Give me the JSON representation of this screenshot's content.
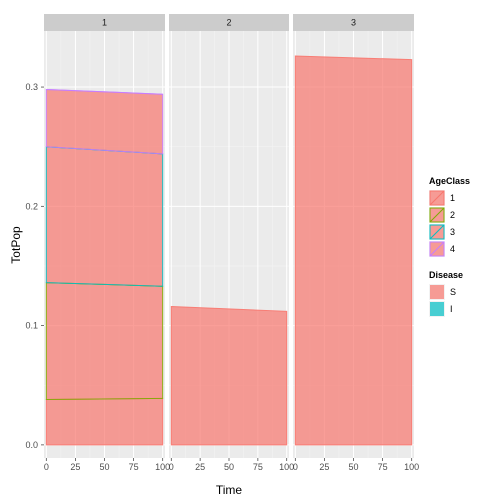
{
  "chart_data": {
    "type": "area",
    "xlabel": "Time",
    "ylabel": "TotPop",
    "xlim": [
      -2,
      102
    ],
    "ylim": [
      -0.011,
      0.347
    ],
    "x_ticks": [
      "0",
      "25",
      "50",
      "75",
      "100"
    ],
    "y_ticks": [
      "0.0",
      "0.1",
      "0.2",
      "0.3"
    ],
    "panels": [
      {
        "label": "1",
        "stacked_bands": [
          {
            "age_class": "1",
            "disease": "S",
            "color": "#F8766D",
            "base": [
              0,
              0
            ],
            "top": [
              0.038,
              0.039
            ]
          },
          {
            "age_class": "1",
            "disease": "I",
            "color": "#00BFC4",
            "base": [
              0.038,
              0.039
            ],
            "top": [
              0.038,
              0.039
            ]
          },
          {
            "age_class": "2",
            "disease": "S",
            "color": "#F8766D",
            "base": [
              0.038,
              0.039
            ],
            "top": [
              0.136,
              0.133
            ]
          },
          {
            "age_class": "2",
            "disease": "I",
            "color": "#00BFC4",
            "base": [
              0.136,
              0.133
            ],
            "top": [
              0.136,
              0.133
            ]
          },
          {
            "age_class": "3",
            "disease": "S",
            "color": "#F8766D",
            "base": [
              0.136,
              0.133
            ],
            "top": [
              0.25,
              0.244
            ]
          },
          {
            "age_class": "3",
            "disease": "I",
            "color": "#00BFC4",
            "base": [
              0.25,
              0.244
            ],
            "top": [
              0.25,
              0.244
            ]
          },
          {
            "age_class": "4",
            "disease": "S",
            "color": "#F8766D",
            "base": [
              0.25,
              0.244
            ],
            "top": [
              0.298,
              0.294
            ]
          },
          {
            "age_class": "4",
            "disease": "I",
            "color": "#00BFC4",
            "base": [
              0.298,
              0.294
            ],
            "top": [
              0.298,
              0.294
            ]
          }
        ]
      },
      {
        "label": "2",
        "stacked_bands": [
          {
            "age_class": "1",
            "disease": "S",
            "color": "#F8766D",
            "base": [
              0,
              0
            ],
            "top": [
              0.116,
              0.112
            ]
          }
        ]
      },
      {
        "label": "3",
        "stacked_bands": [
          {
            "age_class": "1",
            "disease": "S",
            "color": "#F8766D",
            "base": [
              0,
              0
            ],
            "top": [
              0.326,
              0.323
            ]
          }
        ]
      }
    ],
    "x": [
      0,
      100
    ],
    "grid": true,
    "legend_position": "right",
    "legends": [
      {
        "title": "AgeClass",
        "entries": [
          {
            "label": "1",
            "color": "#F8766D"
          },
          {
            "label": "2",
            "color": "#7CAE00"
          },
          {
            "label": "3",
            "color": "#00BFC4"
          },
          {
            "label": "4",
            "color": "#C77CFF"
          }
        ]
      },
      {
        "title": "Disease",
        "entries": [
          {
            "label": "S",
            "color": "#F8766D"
          },
          {
            "label": "I",
            "color": "#00BFC4"
          }
        ]
      }
    ]
  },
  "colors": {
    "panel_background": "#EBEBEB",
    "strip_background": "#CCCCCC",
    "grid_major": "#FFFFFF",
    "grid_minor": "#F5F5F5"
  }
}
